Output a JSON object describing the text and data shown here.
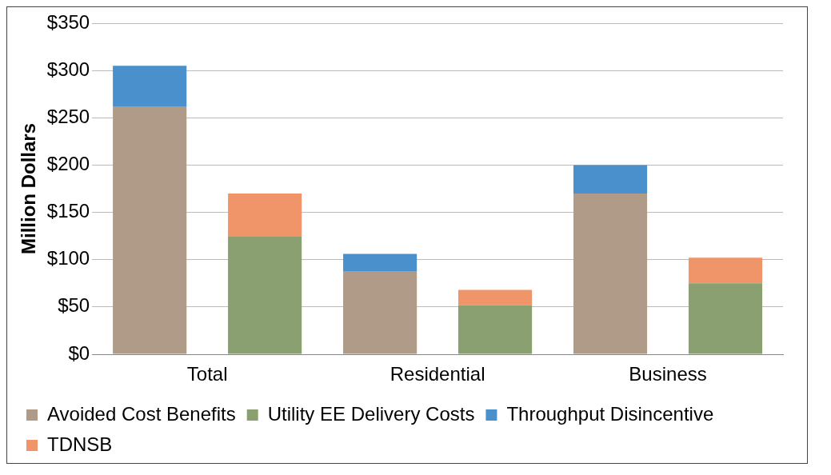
{
  "chart_data": {
    "type": "bar",
    "ylabel": "Million Dollars",
    "categories": [
      "Total",
      null,
      "Residential",
      null,
      "Business",
      null
    ],
    "stacked": true,
    "series": [
      {
        "name": "Avoided Cost Benefits",
        "color": "#b09a88",
        "values": [
          262,
          null,
          88,
          null,
          170,
          null
        ]
      },
      {
        "name": "Utility EE Delivery Costs",
        "color": "#8aa070",
        "values": [
          null,
          125,
          null,
          52,
          null,
          75
        ]
      },
      {
        "name": "Throughput Disincentive",
        "color": "#4a90cc",
        "values": [
          43,
          null,
          18,
          null,
          30,
          null
        ]
      },
      {
        "name": "TDNSB",
        "color": "#f0956a",
        "values": [
          null,
          45,
          null,
          16,
          null,
          27
        ]
      }
    ],
    "ylim": [
      0,
      350
    ],
    "yticks": [
      {
        "value": 0,
        "label": "$0"
      },
      {
        "value": 50,
        "label": "$50"
      },
      {
        "value": 100,
        "label": "$100"
      },
      {
        "value": 150,
        "label": "$150"
      },
      {
        "value": 200,
        "label": "$200"
      },
      {
        "value": 250,
        "label": "$250"
      },
      {
        "value": 300,
        "label": "$300"
      },
      {
        "value": 350,
        "label": "$350"
      }
    ],
    "grid": "y",
    "legend": "bottom"
  }
}
